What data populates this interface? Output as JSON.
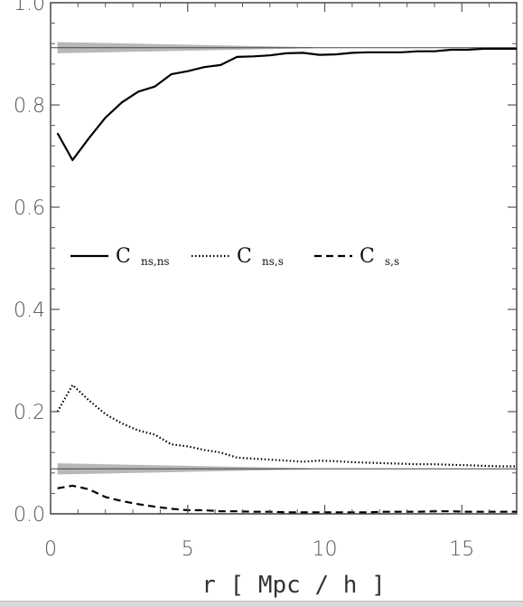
{
  "chart_data": {
    "type": "line",
    "title": "",
    "xlabel": "r [ Mpc / h ]",
    "ylabel": "",
    "xlim": [
      0,
      17
    ],
    "ylim": [
      0,
      1.0
    ],
    "x_ticks": [
      0,
      5,
      10,
      15
    ],
    "x_tick_labels": [
      "0",
      "5",
      "10",
      "15"
    ],
    "y_ticks": [
      0.0,
      0.2,
      0.4,
      0.6,
      0.8,
      1.0
    ],
    "y_tick_labels": [
      "0.0",
      "0.2",
      "0.4",
      "0.6",
      "0.8",
      "1.0"
    ],
    "legend_placement": "middle",
    "grid": false,
    "series": [
      {
        "name": "C ns,ns",
        "label_main": "C",
        "label_sub": "ns,ns",
        "style": "solid",
        "x": [
          0.25,
          0.8,
          1.4,
          2.0,
          2.6,
          3.2,
          3.8,
          4.4,
          5.0,
          5.6,
          6.2,
          6.8,
          7.4,
          8.0,
          8.6,
          9.2,
          9.8,
          10.4,
          11.0,
          11.6,
          12.2,
          12.8,
          13.4,
          14.0,
          14.6,
          15.2,
          15.8,
          16.4,
          17.0
        ],
        "y": [
          0.745,
          0.692,
          0.735,
          0.775,
          0.805,
          0.826,
          0.836,
          0.86,
          0.866,
          0.874,
          0.878,
          0.894,
          0.895,
          0.897,
          0.901,
          0.902,
          0.898,
          0.899,
          0.902,
          0.903,
          0.903,
          0.903,
          0.905,
          0.905,
          0.908,
          0.908,
          0.91,
          0.91,
          0.91
        ]
      },
      {
        "name": "C ns,s",
        "label_main": "C",
        "label_sub": "ns,s",
        "style": "dotted",
        "x": [
          0.25,
          0.8,
          1.4,
          2.0,
          2.6,
          3.2,
          3.8,
          4.4,
          5.0,
          5.6,
          6.2,
          6.8,
          7.4,
          8.0,
          8.6,
          9.2,
          9.8,
          10.4,
          11.0,
          11.6,
          12.2,
          12.8,
          13.4,
          14.0,
          14.6,
          15.2,
          15.8,
          16.4,
          17.0
        ],
        "y": [
          0.2,
          0.252,
          0.222,
          0.195,
          0.177,
          0.163,
          0.155,
          0.136,
          0.132,
          0.125,
          0.12,
          0.11,
          0.108,
          0.106,
          0.104,
          0.102,
          0.104,
          0.103,
          0.101,
          0.1,
          0.099,
          0.098,
          0.097,
          0.097,
          0.096,
          0.095,
          0.094,
          0.093,
          0.093
        ]
      },
      {
        "name": "C s,s",
        "label_main": "C",
        "label_sub": "s,s",
        "style": "dashed",
        "x": [
          0.25,
          0.8,
          1.4,
          2.0,
          2.6,
          3.2,
          3.8,
          4.4,
          5.0,
          5.6,
          6.2,
          6.8,
          7.4,
          8.0,
          8.6,
          9.2,
          9.8,
          10.4,
          11.0,
          11.6,
          12.2,
          12.8,
          13.4,
          14.0,
          14.6,
          15.2,
          15.8,
          16.4,
          17.0
        ],
        "y": [
          0.05,
          0.055,
          0.048,
          0.033,
          0.025,
          0.019,
          0.014,
          0.01,
          0.007,
          0.007,
          0.005,
          0.005,
          0.004,
          0.004,
          0.003,
          0.003,
          0.003,
          0.003,
          0.003,
          0.003,
          0.004,
          0.004,
          0.004,
          0.005,
          0.005,
          0.004,
          0.004,
          0.004,
          0.004
        ]
      }
    ],
    "reference_lines": [
      {
        "y": 0.912,
        "band_halfwidth_start": 0.011,
        "band_end_x": 9.5
      },
      {
        "y": 0.088,
        "band_halfwidth_start": 0.011,
        "band_end_x": 9.5
      },
      {
        "y": 0.0,
        "band_halfwidth_start": 0.0,
        "band_end_x": 0.0
      }
    ],
    "colors": {
      "series": "#000000",
      "axes": "#555555",
      "band": "#b8b8b8",
      "reference_line": "#444444"
    }
  }
}
